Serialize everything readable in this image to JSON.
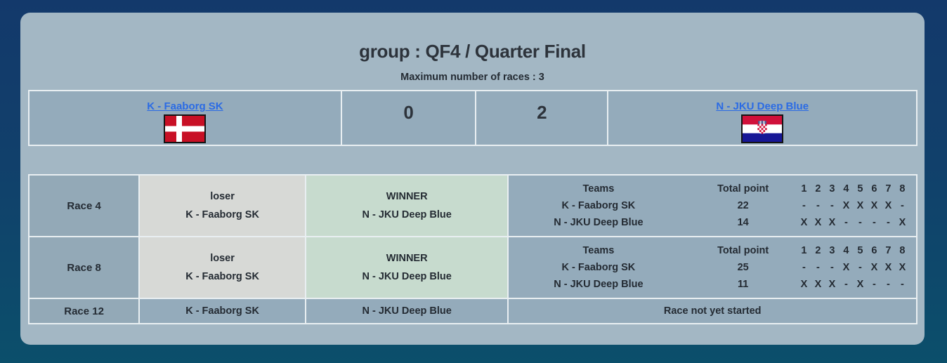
{
  "header": {
    "title": "group : QF4 / Quarter Final",
    "subtitle": "Maximum number of races : 3"
  },
  "match": {
    "team1": {
      "name": "K - Faaborg SK",
      "flag": "denmark",
      "score": "0"
    },
    "team2": {
      "name": "N - JKU Deep Blue",
      "flag": "croatia",
      "score": "2"
    }
  },
  "races": [
    {
      "name": "Race 4",
      "result": {
        "loser_label": "loser",
        "loser_team": "K - Faaborg SK",
        "winner_label": "WINNER",
        "winner_team": "N - JKU Deep Blue"
      },
      "points": {
        "teams_header": "Teams",
        "total_header": "Total point",
        "mark_headers": [
          "1",
          "2",
          "3",
          "4",
          "5",
          "6",
          "7",
          "8"
        ],
        "rows": [
          {
            "team": "K - Faaborg SK",
            "total": "22",
            "marks": [
              "-",
              "-",
              "-",
              "X",
              "X",
              "X",
              "X",
              "-"
            ]
          },
          {
            "team": "N - JKU Deep Blue",
            "total": "14",
            "marks": [
              "X",
              "X",
              "X",
              "-",
              "-",
              "-",
              "-",
              "X"
            ]
          }
        ]
      }
    },
    {
      "name": "Race 8",
      "result": {
        "loser_label": "loser",
        "loser_team": "K - Faaborg SK",
        "winner_label": "WINNER",
        "winner_team": "N - JKU Deep Blue"
      },
      "points": {
        "teams_header": "Teams",
        "total_header": "Total point",
        "mark_headers": [
          "1",
          "2",
          "3",
          "4",
          "5",
          "6",
          "7",
          "8"
        ],
        "rows": [
          {
            "team": "K - Faaborg SK",
            "total": "25",
            "marks": [
              "-",
              "-",
              "-",
              "X",
              "-",
              "X",
              "X",
              "X"
            ]
          },
          {
            "team": "N - JKU Deep Blue",
            "total": "11",
            "marks": [
              "X",
              "X",
              "X",
              "-",
              "X",
              "-",
              "-",
              "-"
            ]
          }
        ]
      }
    },
    {
      "name": "Race 12",
      "team1": "K - Faaborg SK",
      "team2": "N - JKU Deep Blue",
      "status": "Race not yet started"
    }
  ],
  "colors": {
    "background_top": "#13396b",
    "background_bottom": "#0b4f6b",
    "panel": "#a3b7c4",
    "cell": "#94abbb",
    "loser_cell": "#d7d9d6",
    "winner_cell": "#c7dbce",
    "link": "#2b6be4",
    "text": "#242b33"
  }
}
